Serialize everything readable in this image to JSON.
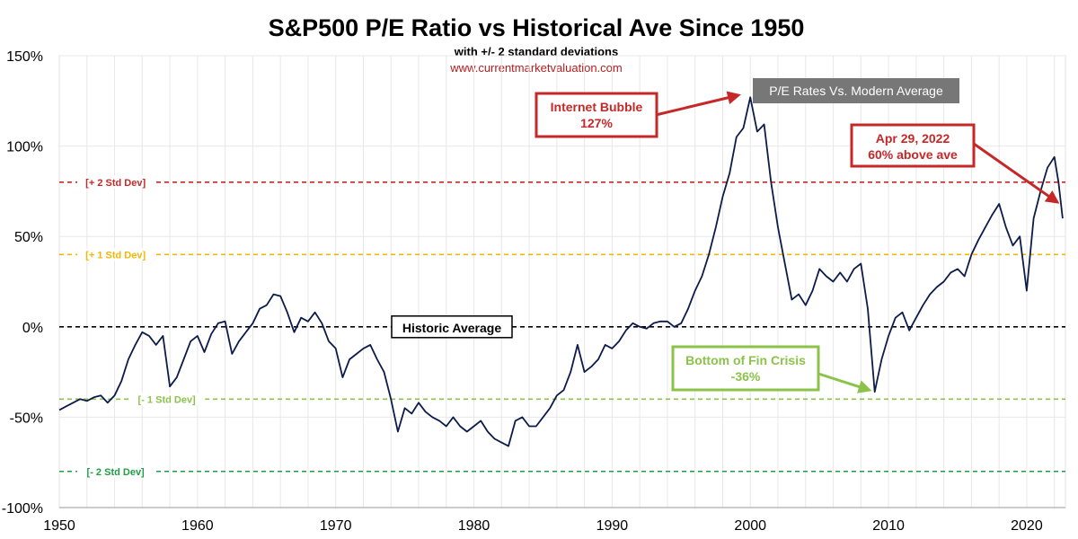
{
  "chart_data": {
    "type": "line",
    "title": "S&P500 P/E Ratio vs Historical Ave Since 1950",
    "subtitle": "with +/- 2 standard deviations",
    "source": "www.currentmarketvaluation.com",
    "legend": {
      "label": "P/E Rates Vs. Modern Average",
      "placement": "top-center",
      "color": "#777777"
    },
    "xlim": [
      1950,
      2022.8
    ],
    "ylim": [
      -100,
      150
    ],
    "x_ticks": [
      {
        "value": 1950,
        "label": "1950"
      },
      {
        "value": 1960,
        "label": "1960"
      },
      {
        "value": 1970,
        "label": "1970"
      },
      {
        "value": 1980,
        "label": "1980"
      },
      {
        "value": 1990,
        "label": "1990"
      },
      {
        "value": 2000,
        "label": "2000"
      },
      {
        "value": 2010,
        "label": "2010"
      },
      {
        "value": 2020,
        "label": "2020"
      }
    ],
    "y_ticks": [
      {
        "value": 150,
        "label": "150%"
      },
      {
        "value": 100,
        "label": "100%"
      },
      {
        "value": 50,
        "label": "50%"
      },
      {
        "value": 0,
        "label": "0%"
      },
      {
        "value": -50,
        "label": "-50%"
      },
      {
        "value": -100,
        "label": "-100%"
      }
    ],
    "grid": true,
    "reference_lines": [
      {
        "value": 80,
        "label": "+ 2 Std Dev",
        "color": "#c62828"
      },
      {
        "value": 40,
        "label": "+ 1 Std Dev",
        "color": "#f2b705"
      },
      {
        "value": 0,
        "label": "Historic Average",
        "color": "#000000"
      },
      {
        "value": -40,
        "label": "- 1 Std Dev",
        "color": "#8bc34a"
      },
      {
        "value": -80,
        "label": "- 2 Std Dev",
        "color": "#1e9e45"
      }
    ],
    "series": [
      {
        "name": "P/E Rates Vs. Modern Average",
        "color": "#0d1b4b",
        "points": [
          [
            1950.0,
            -46
          ],
          [
            1950.5,
            -44
          ],
          [
            1951.0,
            -42
          ],
          [
            1951.5,
            -40
          ],
          [
            1952.0,
            -41
          ],
          [
            1952.5,
            -39
          ],
          [
            1953.0,
            -38
          ],
          [
            1953.5,
            -42
          ],
          [
            1954.0,
            -38
          ],
          [
            1954.5,
            -30
          ],
          [
            1955.0,
            -18
          ],
          [
            1955.5,
            -10
          ],
          [
            1956.0,
            -3
          ],
          [
            1956.5,
            -5
          ],
          [
            1957.0,
            -10
          ],
          [
            1957.5,
            -5
          ],
          [
            1958.0,
            -33
          ],
          [
            1958.5,
            -28
          ],
          [
            1959.0,
            -18
          ],
          [
            1959.5,
            -8
          ],
          [
            1960.0,
            -5
          ],
          [
            1960.5,
            -14
          ],
          [
            1961.0,
            -4
          ],
          [
            1961.5,
            2
          ],
          [
            1962.0,
            3
          ],
          [
            1962.5,
            -15
          ],
          [
            1963.0,
            -8
          ],
          [
            1963.5,
            -3
          ],
          [
            1964.0,
            2
          ],
          [
            1964.5,
            10
          ],
          [
            1965.0,
            12
          ],
          [
            1965.5,
            18
          ],
          [
            1966.0,
            17
          ],
          [
            1966.5,
            8
          ],
          [
            1967.0,
            -3
          ],
          [
            1967.5,
            5
          ],
          [
            1968.0,
            3
          ],
          [
            1968.5,
            8
          ],
          [
            1969.0,
            2
          ],
          [
            1969.5,
            -8
          ],
          [
            1970.0,
            -12
          ],
          [
            1970.5,
            -28
          ],
          [
            1971.0,
            -18
          ],
          [
            1971.5,
            -15
          ],
          [
            1972.0,
            -12
          ],
          [
            1972.5,
            -10
          ],
          [
            1973.0,
            -18
          ],
          [
            1973.5,
            -25
          ],
          [
            1974.0,
            -40
          ],
          [
            1974.5,
            -58
          ],
          [
            1975.0,
            -45
          ],
          [
            1975.5,
            -48
          ],
          [
            1976.0,
            -42
          ],
          [
            1976.5,
            -47
          ],
          [
            1977.0,
            -50
          ],
          [
            1977.5,
            -52
          ],
          [
            1978.0,
            -55
          ],
          [
            1978.5,
            -50
          ],
          [
            1979.0,
            -55
          ],
          [
            1979.5,
            -58
          ],
          [
            1980.0,
            -55
          ],
          [
            1980.5,
            -52
          ],
          [
            1981.0,
            -58
          ],
          [
            1981.5,
            -62
          ],
          [
            1982.0,
            -64
          ],
          [
            1982.5,
            -66
          ],
          [
            1983.0,
            -52
          ],
          [
            1983.5,
            -50
          ],
          [
            1984.0,
            -55
          ],
          [
            1984.5,
            -55
          ],
          [
            1985.0,
            -50
          ],
          [
            1985.5,
            -45
          ],
          [
            1986.0,
            -38
          ],
          [
            1986.5,
            -35
          ],
          [
            1987.0,
            -25
          ],
          [
            1987.5,
            -10
          ],
          [
            1988.0,
            -25
          ],
          [
            1988.5,
            -22
          ],
          [
            1989.0,
            -18
          ],
          [
            1989.5,
            -10
          ],
          [
            1990.0,
            -12
          ],
          [
            1990.5,
            -8
          ],
          [
            1991.0,
            -2
          ],
          [
            1991.5,
            2
          ],
          [
            1992.0,
            0
          ],
          [
            1992.5,
            -1
          ],
          [
            1993.0,
            2
          ],
          [
            1993.5,
            3
          ],
          [
            1994.0,
            3
          ],
          [
            1994.5,
            0
          ],
          [
            1995.0,
            2
          ],
          [
            1995.5,
            10
          ],
          [
            1996.0,
            20
          ],
          [
            1996.5,
            28
          ],
          [
            1997.0,
            40
          ],
          [
            1997.5,
            55
          ],
          [
            1998.0,
            72
          ],
          [
            1998.5,
            85
          ],
          [
            1999.0,
            105
          ],
          [
            1999.5,
            110
          ],
          [
            2000.0,
            127
          ],
          [
            2000.5,
            108
          ],
          [
            2001.0,
            112
          ],
          [
            2001.5,
            80
          ],
          [
            2002.0,
            55
          ],
          [
            2002.5,
            35
          ],
          [
            2003.0,
            15
          ],
          [
            2003.5,
            18
          ],
          [
            2004.0,
            12
          ],
          [
            2004.5,
            20
          ],
          [
            2005.0,
            32
          ],
          [
            2005.5,
            28
          ],
          [
            2006.0,
            25
          ],
          [
            2006.5,
            30
          ],
          [
            2007.0,
            25
          ],
          [
            2007.5,
            32
          ],
          [
            2008.0,
            35
          ],
          [
            2008.5,
            10
          ],
          [
            2009.0,
            -36
          ],
          [
            2009.5,
            -18
          ],
          [
            2010.0,
            -5
          ],
          [
            2010.5,
            5
          ],
          [
            2011.0,
            8
          ],
          [
            2011.5,
            -2
          ],
          [
            2012.0,
            5
          ],
          [
            2012.5,
            12
          ],
          [
            2013.0,
            18
          ],
          [
            2013.5,
            22
          ],
          [
            2014.0,
            25
          ],
          [
            2014.5,
            30
          ],
          [
            2015.0,
            32
          ],
          [
            2015.5,
            28
          ],
          [
            2016.0,
            40
          ],
          [
            2016.5,
            48
          ],
          [
            2017.0,
            55
          ],
          [
            2017.5,
            62
          ],
          [
            2018.0,
            68
          ],
          [
            2018.5,
            55
          ],
          [
            2019.0,
            45
          ],
          [
            2019.5,
            50
          ],
          [
            2020.0,
            20
          ],
          [
            2020.5,
            60
          ],
          [
            2021.0,
            75
          ],
          [
            2021.5,
            88
          ],
          [
            2022.0,
            94
          ],
          [
            2022.3,
            80
          ],
          [
            2022.6,
            60
          ]
        ]
      }
    ],
    "annotations": [
      {
        "id": "internet-bubble",
        "lines": [
          "Internet Bubble",
          "127%"
        ],
        "x": 2000,
        "y": 127,
        "color": "#c62828"
      },
      {
        "id": "apr-2022",
        "lines": [
          "Apr 29, 2022",
          "60% above ave"
        ],
        "x": 2022.6,
        "y": 60,
        "color": "#c62828"
      },
      {
        "id": "fin-crisis",
        "lines": [
          "Bottom of Fin Crisis",
          "-36%"
        ],
        "x": 2009,
        "y": -36,
        "color": "#8bc34a"
      }
    ]
  }
}
